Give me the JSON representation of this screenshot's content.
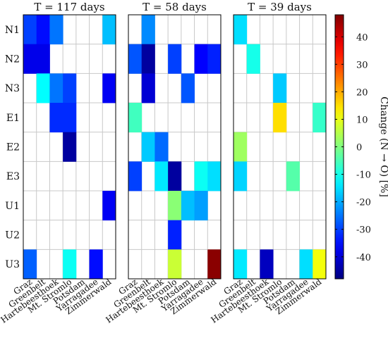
{
  "chart_data": {
    "type": "heatmap",
    "rows": [
      "N1",
      "N2",
      "N3",
      "E1",
      "E2",
      "E3",
      "U1",
      "U2",
      "U3"
    ],
    "columns": [
      "Graz",
      "Greenbelt",
      "Hartebeesthoek",
      "Mt. Stromlo",
      "Potsdam",
      "Yarragadee",
      "Zimmerwald"
    ],
    "panels": [
      {
        "title": "T = 117 days",
        "values": [
          [
            -30,
            -35,
            -25,
            null,
            null,
            null,
            -18
          ],
          [
            -38,
            -38,
            null,
            null,
            null,
            null,
            null
          ],
          [
            null,
            -12,
            -25,
            -30,
            null,
            null,
            -37
          ],
          [
            null,
            null,
            -32,
            -32,
            null,
            null,
            null
          ],
          [
            null,
            null,
            null,
            -45,
            null,
            null,
            null
          ],
          [
            null,
            null,
            null,
            null,
            null,
            null,
            null
          ],
          [
            null,
            null,
            null,
            null,
            null,
            null,
            -37
          ],
          [
            null,
            null,
            null,
            null,
            null,
            null,
            null
          ],
          [
            -27,
            null,
            null,
            -11,
            null,
            -35,
            null
          ]
        ]
      },
      {
        "title": "T = 58 days",
        "values": [
          [
            null,
            -23,
            null,
            null,
            null,
            null,
            null
          ],
          [
            -28,
            -45,
            null,
            -30,
            null,
            -36,
            -33
          ],
          [
            null,
            -40,
            null,
            null,
            -28,
            null,
            null
          ],
          [
            -6,
            null,
            null,
            null,
            null,
            null,
            null
          ],
          [
            null,
            -17,
            -26,
            null,
            null,
            null,
            null
          ],
          [
            -30,
            null,
            -14,
            -45,
            null,
            -11,
            -15
          ],
          [
            null,
            null,
            null,
            1,
            -18,
            -21,
            null
          ],
          [
            null,
            null,
            null,
            -33,
            null,
            null,
            null
          ],
          [
            null,
            null,
            null,
            7,
            null,
            null,
            47
          ]
        ]
      },
      {
        "title": "T = 39 days",
        "values": [
          [
            -15,
            null,
            null,
            null,
            null,
            null,
            null
          ],
          [
            null,
            -10,
            null,
            null,
            null,
            null,
            null
          ],
          [
            null,
            null,
            null,
            -17,
            null,
            null,
            null
          ],
          [
            null,
            null,
            null,
            15,
            null,
            null,
            -7
          ],
          [
            3,
            null,
            null,
            null,
            null,
            null,
            null
          ],
          [
            -16,
            null,
            null,
            null,
            -4,
            null,
            null
          ],
          [
            null,
            null,
            null,
            null,
            null,
            null,
            null
          ],
          [
            null,
            null,
            null,
            null,
            null,
            null,
            null
          ],
          [
            -14,
            null,
            -42,
            null,
            null,
            -15,
            11
          ]
        ]
      }
    ],
    "colorbar": {
      "label": "Change (N → O) [%]",
      "range": [
        -48,
        48
      ],
      "ticks": [
        40,
        30,
        20,
        10,
        0,
        -10,
        -20,
        -30,
        -40
      ],
      "colormap": "jet"
    }
  }
}
